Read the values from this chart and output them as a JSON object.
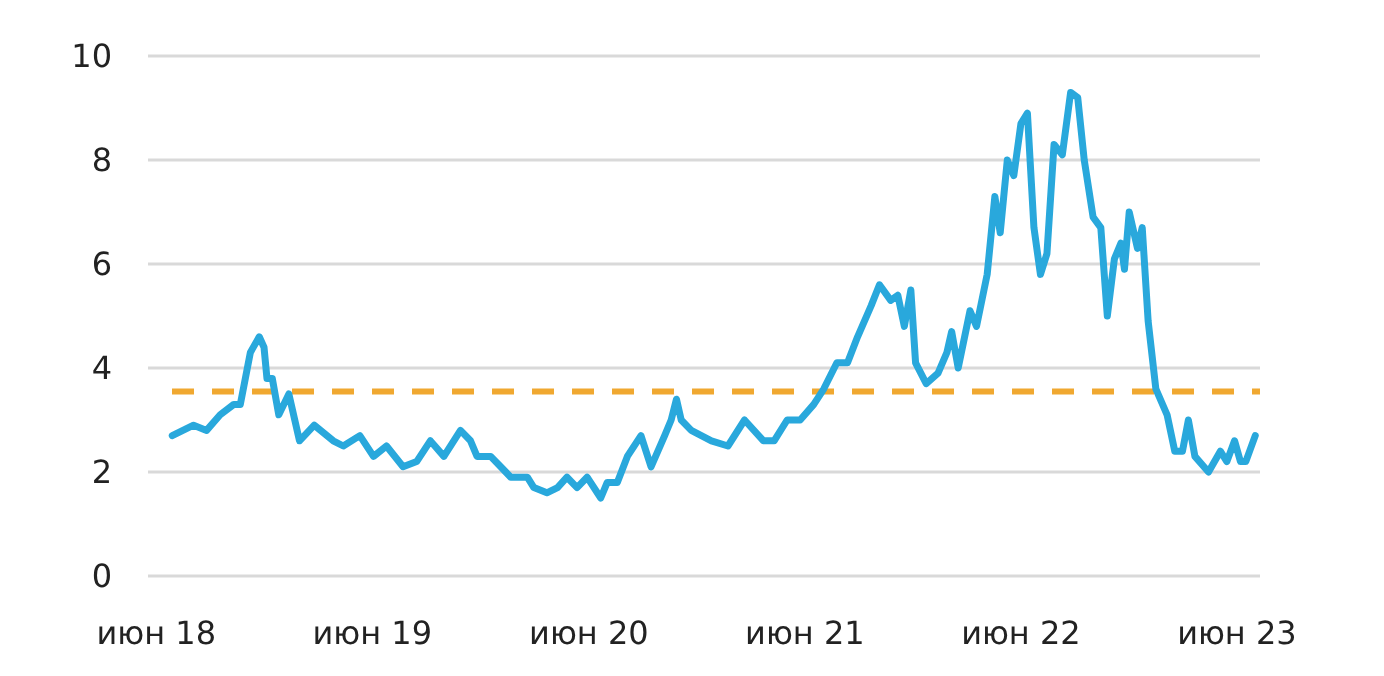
{
  "chart_data": {
    "type": "line",
    "x": [
      "2018-06-28",
      "2018-08-03",
      "2018-08-25",
      "2018-09-17",
      "2018-10-10",
      "2018-10-21",
      "2018-11-07",
      "2018-11-22",
      "2018-11-30",
      "2018-12-05",
      "2018-12-14",
      "2018-12-25",
      "2019-01-11",
      "2019-01-29",
      "2019-02-23",
      "2019-03-27",
      "2019-04-13",
      "2019-05-11",
      "2019-06-03",
      "2019-06-25",
      "2019-07-23",
      "2019-08-15",
      "2019-09-07",
      "2019-09-30",
      "2019-10-28",
      "2019-11-14",
      "2019-11-25",
      "2019-12-18",
      "2020-01-04",
      "2020-01-21",
      "2020-02-18",
      "2020-02-29",
      "2020-03-22",
      "2020-04-09",
      "2020-04-25",
      "2020-05-12",
      "2020-05-29",
      "2020-06-21",
      "2020-07-02",
      "2020-07-19",
      "2020-08-05",
      "2020-08-28",
      "2020-09-14",
      "2020-10-07",
      "2020-10-18",
      "2020-10-27",
      "2020-11-04",
      "2020-11-21",
      "2020-12-08",
      "2020-12-25",
      "2021-01-22",
      "2021-02-19",
      "2021-03-23",
      "2021-04-10",
      "2021-05-02",
      "2021-05-24",
      "2021-06-16",
      "2021-07-03",
      "2021-07-25",
      "2021-08-12",
      "2021-08-29",
      "2021-09-21",
      "2021-10-05",
      "2021-10-24",
      "2021-11-05",
      "2021-11-16",
      "2021-11-27",
      "2021-12-05",
      "2021-12-23",
      "2022-01-12",
      "2022-01-27",
      "2022-02-04",
      "2022-02-15",
      "2022-03-07",
      "2022-03-18",
      "2022-04-05",
      "2022-04-18",
      "2022-04-27",
      "2022-05-09",
      "2022-05-20",
      "2022-06-01",
      "2022-06-12",
      "2022-06-23",
      "2022-07-04",
      "2022-07-15",
      "2022-07-27",
      "2022-08-10",
      "2022-08-24",
      "2022-09-05",
      "2022-09-16",
      "2022-10-01",
      "2022-10-14",
      "2022-10-25",
      "2022-11-06",
      "2022-11-17",
      "2022-11-23",
      "2022-12-01",
      "2022-12-15",
      "2022-12-23",
      "2023-01-02",
      "2023-01-15",
      "2023-02-03",
      "2023-02-16",
      "2023-03-01",
      "2023-03-11",
      "2023-03-22",
      "2023-04-14",
      "2023-05-04",
      "2023-05-15",
      "2023-05-28",
      "2023-06-07",
      "2023-06-16",
      "2023-07-02"
    ],
    "series": [
      {
        "color": "#29a8dc",
        "values": [
          2.7,
          2.9,
          2.8,
          3.1,
          3.3,
          3.3,
          4.3,
          4.6,
          4.4,
          3.8,
          3.8,
          3.1,
          3.5,
          2.6,
          2.9,
          2.6,
          2.5,
          2.7,
          2.3,
          2.5,
          2.1,
          2.2,
          2.6,
          2.3,
          2.8,
          2.6,
          2.3,
          2.3,
          2.1,
          1.9,
          1.9,
          1.7,
          1.6,
          1.7,
          1.9,
          1.7,
          1.9,
          1.5,
          1.8,
          1.8,
          2.3,
          2.7,
          2.1,
          2.7,
          3.0,
          3.4,
          3.0,
          2.8,
          2.7,
          2.6,
          2.5,
          3.0,
          2.6,
          2.6,
          3.0,
          3.0,
          3.3,
          3.6,
          4.1,
          4.1,
          4.6,
          5.2,
          5.6,
          5.3,
          5.4,
          4.8,
          5.5,
          4.1,
          3.7,
          3.9,
          4.3,
          4.7,
          4.0,
          5.1,
          4.8,
          5.8,
          7.3,
          6.6,
          8.0,
          7.7,
          8.7,
          8.9,
          6.7,
          5.8,
          6.2,
          8.3,
          8.1,
          9.3,
          9.2,
          8.0,
          6.9,
          6.7,
          5.0,
          6.1,
          6.4,
          5.9,
          7.0,
          6.3,
          6.7,
          4.9,
          3.6,
          3.1,
          2.4,
          2.4,
          3.0,
          2.3,
          2.0,
          2.4,
          2.2,
          2.6,
          2.2,
          2.2,
          2.7
        ]
      }
    ],
    "xlim": [
      "2018-05-18",
      "2023-07-10"
    ],
    "xticks": [
      {
        "value": "2018-06-01",
        "label": "июн 18"
      },
      {
        "value": "2019-06-01",
        "label": "июн 19"
      },
      {
        "value": "2020-06-01",
        "label": "июн 20"
      },
      {
        "value": "2021-06-01",
        "label": "июн 21"
      },
      {
        "value": "2022-06-01",
        "label": "июн 22"
      },
      {
        "value": "2023-06-01",
        "label": "июн 23"
      }
    ],
    "ylim": [
      0,
      10
    ],
    "yticks": [
      0,
      2,
      4,
      6,
      8,
      10
    ],
    "grid": "y",
    "line_style": "solid",
    "ref_lines": [
      {
        "axis": "y",
        "value": 3.55,
        "color": "#f0a830",
        "line_style": "dashed"
      }
    ]
  }
}
